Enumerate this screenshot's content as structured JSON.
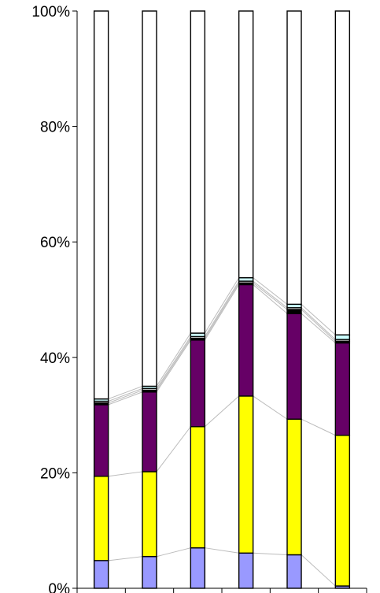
{
  "chart_data": {
    "type": "bar",
    "stacked": true,
    "percent_stacked": true,
    "categories": [
      "",
      "",
      "",
      "",
      "",
      ""
    ],
    "ylim": [
      0,
      100
    ],
    "y_ticks": [
      "0%",
      "20%",
      "40%",
      "60%",
      "80%",
      "100%"
    ],
    "grid": false,
    "series_lines": true,
    "series": [
      {
        "color": "#9999FF",
        "values": [
          4.8,
          5.5,
          7.0,
          6.1,
          5.8,
          0.4
        ]
      },
      {
        "color": "#FFFF00",
        "values": [
          14.6,
          14.7,
          21.0,
          27.2,
          23.5,
          26.1
        ]
      },
      {
        "color": "#660066",
        "values": [
          12.4,
          13.8,
          15.0,
          19.3,
          18.3,
          16.0
        ]
      },
      {
        "color": "#000000",
        "values": [
          0.3,
          0.3,
          0.3,
          0.3,
          0.7,
          0.3
        ]
      },
      {
        "color": "#FFFFFF",
        "values": [
          0.3,
          0.3,
          0.3,
          0.3,
          0.3,
          0.3
        ]
      },
      {
        "color": "#CCFFFF",
        "values": [
          0.4,
          0.4,
          0.6,
          0.6,
          0.6,
          0.8
        ]
      },
      {
        "color": "#FFFFFF",
        "values": [
          67.2,
          65.0,
          55.8,
          46.2,
          50.8,
          56.1
        ]
      }
    ]
  }
}
